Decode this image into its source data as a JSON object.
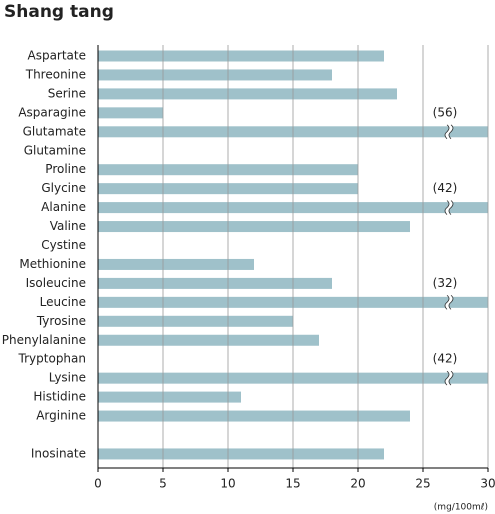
{
  "chart_data": {
    "type": "bar",
    "orientation": "horizontal",
    "title": "Shang tang",
    "x_label": "(mg/100mℓ)",
    "categories": [
      "Aspartate",
      "Threonine",
      "Serine",
      "Asparagine",
      "Glutamate",
      "Glutamine",
      "Proline",
      "Glycine",
      "Alanine",
      "Valine",
      "Cystine",
      "Methionine",
      "Isoleucine",
      "Leucine",
      "Tyrosine",
      "Phenylalanine",
      "Tryptophan",
      "Lysine",
      "Histidine",
      "Arginine",
      null,
      "Inosinate"
    ],
    "values": [
      22,
      18,
      23,
      5,
      56,
      null,
      20,
      20,
      42,
      24,
      null,
      12,
      18,
      32,
      15,
      17,
      null,
      42,
      11,
      24,
      null,
      22
    ],
    "value_labels": [
      null,
      null,
      null,
      null,
      "(56)",
      null,
      null,
      null,
      "(42)",
      null,
      null,
      null,
      null,
      "(32)",
      null,
      null,
      null,
      "(42)",
      null,
      null,
      null,
      null
    ],
    "color": "#9fc1ca",
    "xlim": [
      0,
      30
    ],
    "xticks": [
      0,
      5,
      10,
      15,
      20,
      25,
      30
    ],
    "grid": true
  }
}
